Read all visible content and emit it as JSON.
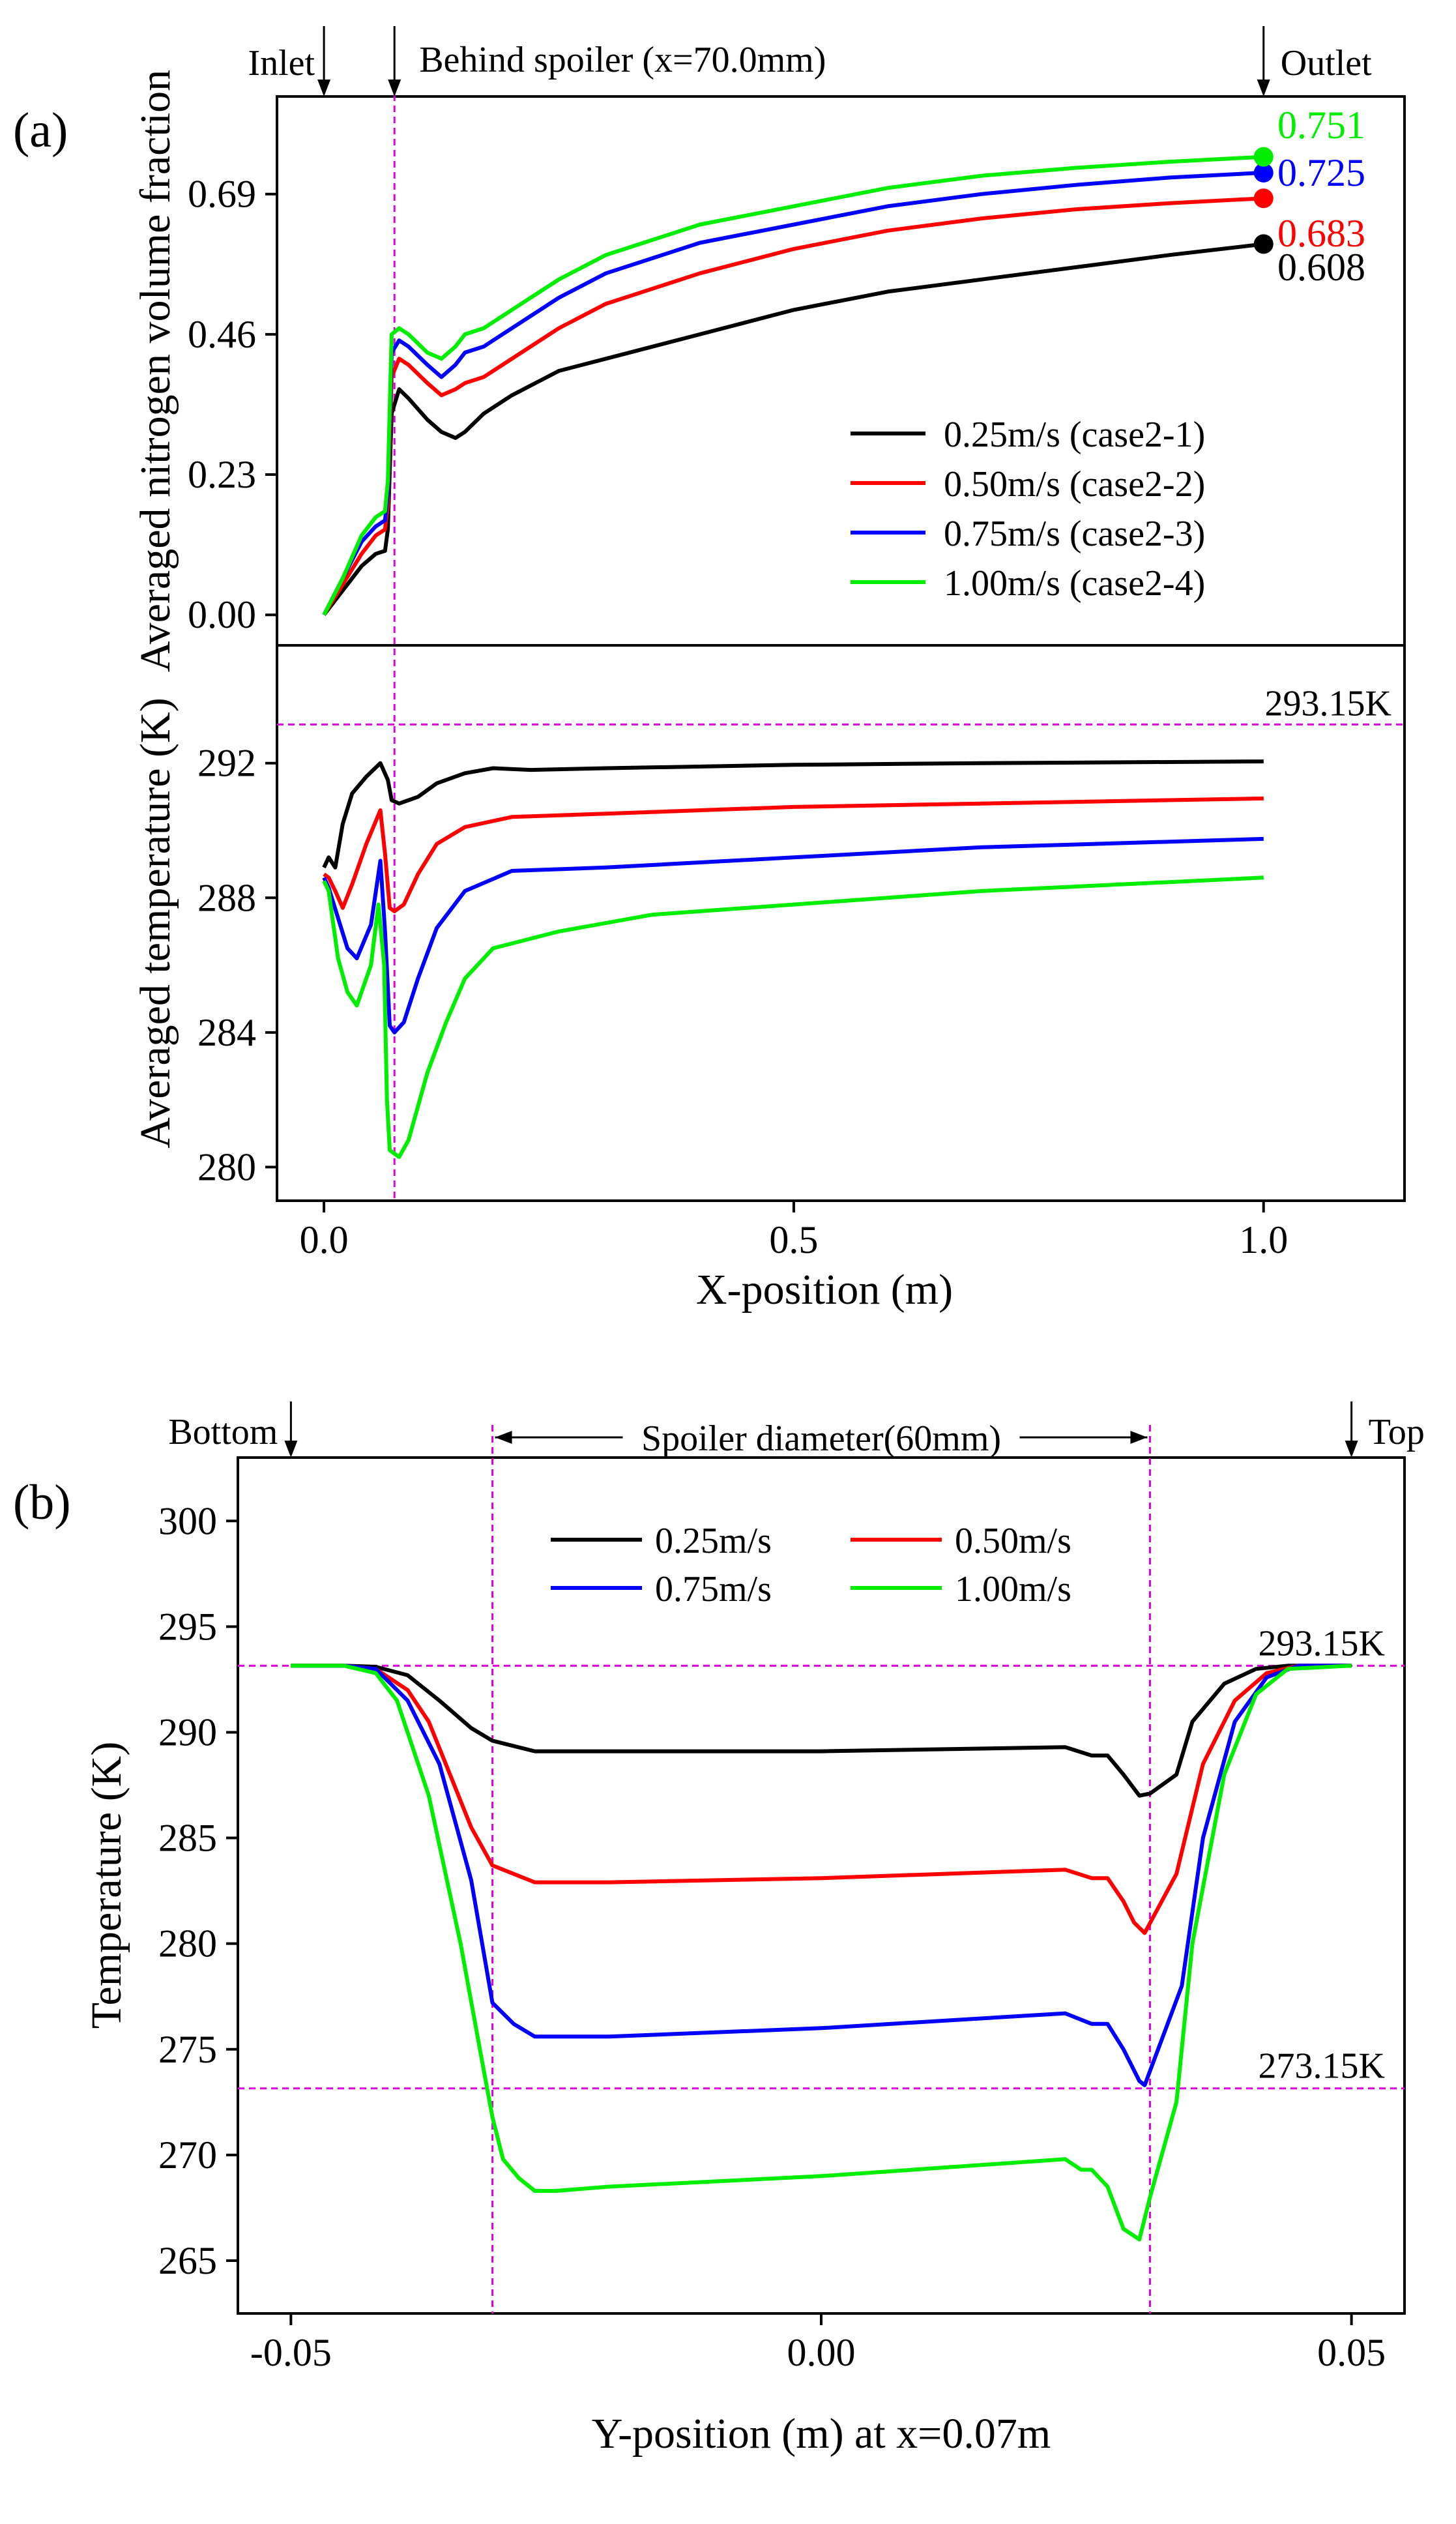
{
  "chart_data": [
    {
      "id": "a",
      "panel_label": "(a)",
      "type": "line",
      "xlabel": "X-position (m)",
      "xlim": [
        -0.05,
        1.15
      ],
      "xticks": [
        0.0,
        0.5,
        1.0
      ],
      "xtick_labels": [
        "0.0",
        "0.5",
        "1.0"
      ],
      "top_annotations": [
        {
          "text": "Inlet",
          "x": 0.0
        },
        {
          "text": "Behind spoiler (x=70.0mm)",
          "x": 0.075
        },
        {
          "text": "Outlet",
          "x": 1.0
        }
      ],
      "spoiler_x": 0.075,
      "legend": {
        "placement": "lower-right of upper subplot",
        "items": [
          "0.25m/s (case2-1)",
          "0.50m/s (case2-2)",
          "0.75m/s (case2-3)",
          "1.00m/s (case2-4)"
        ]
      },
      "colors": [
        "#000000",
        "#ff0000",
        "#0000ff",
        "#00ee00"
      ],
      "upper": {
        "ylabel": "Averaged nitrogen volume fraction",
        "ylim": [
          -0.05,
          0.85
        ],
        "yticks": [
          0.0,
          0.23,
          0.46,
          0.69
        ],
        "ytick_labels": [
          "0.00",
          "0.23",
          "0.46",
          "0.69"
        ],
        "end_labels": [
          "0.608",
          "0.683",
          "0.725",
          "0.751"
        ],
        "end_values": [
          0.608,
          0.683,
          0.725,
          0.751
        ],
        "series": [
          {
            "name": "0.25m/s (case2-1)",
            "x": [
              0,
              0.02,
              0.04,
              0.055,
              0.065,
              0.068,
              0.072,
              0.08,
              0.09,
              0.11,
              0.125,
              0.14,
              0.15,
              0.17,
              0.2,
              0.25,
              0.3,
              0.4,
              0.5,
              0.6,
              0.7,
              0.8,
              0.9,
              1.0
            ],
            "values": [
              0,
              0.04,
              0.08,
              0.1,
              0.105,
              0.14,
              0.33,
              0.37,
              0.355,
              0.32,
              0.3,
              0.29,
              0.3,
              0.33,
              0.36,
              0.4,
              0.42,
              0.46,
              0.5,
              0.53,
              0.55,
              0.57,
              0.59,
              0.608
            ]
          },
          {
            "name": "0.50m/s (case2-2)",
            "x": [
              0,
              0.02,
              0.04,
              0.055,
              0.065,
              0.068,
              0.072,
              0.08,
              0.09,
              0.11,
              0.125,
              0.14,
              0.15,
              0.17,
              0.2,
              0.25,
              0.3,
              0.4,
              0.5,
              0.6,
              0.7,
              0.8,
              0.9,
              1.0
            ],
            "values": [
              0,
              0.05,
              0.1,
              0.13,
              0.14,
              0.18,
              0.39,
              0.42,
              0.41,
              0.38,
              0.36,
              0.37,
              0.38,
              0.39,
              0.42,
              0.47,
              0.51,
              0.56,
              0.6,
              0.63,
              0.65,
              0.665,
              0.675,
              0.683
            ]
          },
          {
            "name": "0.75m/s (case2-3)",
            "x": [
              0,
              0.02,
              0.04,
              0.055,
              0.065,
              0.068,
              0.072,
              0.08,
              0.09,
              0.11,
              0.125,
              0.14,
              0.15,
              0.17,
              0.2,
              0.25,
              0.3,
              0.4,
              0.5,
              0.6,
              0.7,
              0.8,
              0.9,
              1.0
            ],
            "values": [
              0,
              0.06,
              0.12,
              0.145,
              0.155,
              0.2,
              0.43,
              0.45,
              0.44,
              0.41,
              0.39,
              0.41,
              0.43,
              0.44,
              0.47,
              0.52,
              0.56,
              0.61,
              0.64,
              0.67,
              0.69,
              0.705,
              0.717,
              0.725
            ]
          },
          {
            "name": "1.00m/s (case2-4)",
            "x": [
              0,
              0.02,
              0.04,
              0.055,
              0.065,
              0.068,
              0.072,
              0.08,
              0.09,
              0.11,
              0.125,
              0.14,
              0.15,
              0.17,
              0.2,
              0.25,
              0.3,
              0.4,
              0.5,
              0.6,
              0.7,
              0.8,
              0.9,
              1.0
            ],
            "values": [
              0,
              0.06,
              0.13,
              0.16,
              0.17,
              0.22,
              0.46,
              0.47,
              0.46,
              0.43,
              0.42,
              0.44,
              0.46,
              0.47,
              0.5,
              0.55,
              0.59,
              0.64,
              0.67,
              0.7,
              0.72,
              0.733,
              0.743,
              0.751
            ]
          }
        ]
      },
      "lower": {
        "ylabel": "Averaged temperature (K)",
        "ylim": [
          279,
          295.5
        ],
        "yticks": [
          280,
          284,
          288,
          292
        ],
        "ytick_labels": [
          "280",
          "284",
          "288",
          "292"
        ],
        "reference": {
          "value": 293.15,
          "label": "293.15K"
        },
        "series": [
          {
            "name": "0.25m/s (case2-1)",
            "x": [
              0,
              0.005,
              0.012,
              0.02,
              0.03,
              0.045,
              0.06,
              0.068,
              0.072,
              0.08,
              0.1,
              0.12,
              0.15,
              0.18,
              0.22,
              0.3,
              0.5,
              0.7,
              1.0
            ],
            "values": [
              288.9,
              289.2,
              288.9,
              290.2,
              291.1,
              291.6,
              292.0,
              291.5,
              290.9,
              290.8,
              291.0,
              291.4,
              291.7,
              291.85,
              291.8,
              291.85,
              291.95,
              292.0,
              292.05
            ]
          },
          {
            "name": "0.50m/s (case2-2)",
            "x": [
              0,
              0.005,
              0.012,
              0.02,
              0.03,
              0.045,
              0.06,
              0.065,
              0.07,
              0.075,
              0.085,
              0.1,
              0.12,
              0.15,
              0.2,
              0.3,
              0.5,
              0.7,
              1.0
            ],
            "values": [
              288.7,
              288.6,
              288.2,
              287.7,
              288.4,
              289.6,
              290.6,
              289.3,
              287.7,
              287.6,
              287.8,
              288.7,
              289.6,
              290.1,
              290.4,
              290.5,
              290.7,
              290.8,
              290.95
            ]
          },
          {
            "name": "0.75m/s (case2-3)",
            "x": [
              0,
              0.005,
              0.015,
              0.025,
              0.035,
              0.05,
              0.06,
              0.065,
              0.07,
              0.075,
              0.085,
              0.1,
              0.12,
              0.15,
              0.2,
              0.3,
              0.5,
              0.7,
              1.0
            ],
            "values": [
              288.6,
              288.3,
              287.4,
              286.5,
              286.2,
              287.2,
              289.1,
              287.0,
              284.2,
              284.0,
              284.3,
              285.6,
              287.1,
              288.2,
              288.8,
              288.9,
              289.2,
              289.5,
              289.75
            ]
          },
          {
            "name": "1.00m/s (case2-4)",
            "x": [
              0,
              0.005,
              0.015,
              0.025,
              0.035,
              0.05,
              0.058,
              0.064,
              0.067,
              0.07,
              0.08,
              0.09,
              0.11,
              0.13,
              0.15,
              0.18,
              0.25,
              0.35,
              0.5,
              0.7,
              1.0
            ],
            "values": [
              288.5,
              288.2,
              286.2,
              285.2,
              284.8,
              286.0,
              287.8,
              286.0,
              282.0,
              280.5,
              280.3,
              280.8,
              282.8,
              284.3,
              285.6,
              286.5,
              287.0,
              287.5,
              287.8,
              288.2,
              288.6
            ]
          }
        ]
      }
    },
    {
      "id": "b",
      "panel_label": "(b)",
      "type": "line",
      "xlabel": "Y-position (m) at x=0.07m",
      "ylabel": "Temperature (K)",
      "xlim": [
        -0.055,
        0.055
      ],
      "ylim": [
        262.5,
        303
      ],
      "xticks": [
        -0.05,
        0.0,
        0.05
      ],
      "xtick_labels": [
        "-0.05",
        "0.00",
        "0.05"
      ],
      "yticks": [
        265,
        270,
        275,
        280,
        285,
        290,
        295,
        300
      ],
      "ytick_labels": [
        "265",
        "270",
        "275",
        "280",
        "285",
        "290",
        "295",
        "300"
      ],
      "top_annotations": [
        {
          "text": "Bottom",
          "x": -0.05
        },
        {
          "text": "Spoiler diameter(60mm)",
          "x": 0.0
        },
        {
          "text": "Top",
          "x": 0.05
        }
      ],
      "spoiler_edges": [
        -0.031,
        0.031
      ],
      "references": [
        {
          "value": 293.15,
          "label": "293.15K"
        },
        {
          "value": 273.15,
          "label": "273.15K"
        }
      ],
      "legend": {
        "placement": "top, two columns",
        "items": [
          "0.25m/s",
          "0.50m/s",
          "0.75m/s",
          "1.00m/s"
        ]
      },
      "colors": [
        "#000000",
        "#ff0000",
        "#0000ff",
        "#00ee00"
      ],
      "series": [
        {
          "name": "0.25m/s",
          "x": [
            -0.05,
            -0.045,
            -0.042,
            -0.039,
            -0.036,
            -0.033,
            -0.031,
            -0.027,
            -0.02,
            0.0,
            0.023,
            0.0255,
            0.027,
            0.0285,
            0.03,
            0.031,
            0.0335,
            0.035,
            0.038,
            0.041,
            0.044,
            0.05
          ],
          "values": [
            293.15,
            293.15,
            293.1,
            292.7,
            291.5,
            290.2,
            289.6,
            289.1,
            289.1,
            289.1,
            289.3,
            288.9,
            288.9,
            288.0,
            287.0,
            287.1,
            288.0,
            290.5,
            292.3,
            293.0,
            293.15,
            293.15
          ]
        },
        {
          "name": "0.50m/s",
          "x": [
            -0.05,
            -0.045,
            -0.042,
            -0.039,
            -0.037,
            -0.035,
            -0.033,
            -0.031,
            -0.027,
            -0.02,
            0.0,
            0.023,
            0.0255,
            0.027,
            0.0285,
            0.0295,
            0.0305,
            0.0335,
            0.036,
            0.039,
            0.042,
            0.045,
            0.05
          ],
          "values": [
            293.15,
            293.15,
            293.0,
            292.0,
            290.5,
            288.0,
            285.5,
            283.7,
            282.9,
            282.9,
            283.1,
            283.5,
            283.1,
            283.1,
            282.0,
            281.0,
            280.5,
            283.3,
            288.5,
            291.5,
            292.8,
            293.15,
            293.15
          ]
        },
        {
          "name": "0.75m/s",
          "x": [
            -0.05,
            -0.045,
            -0.042,
            -0.039,
            -0.036,
            -0.033,
            -0.031,
            -0.029,
            -0.027,
            -0.02,
            0.0,
            0.023,
            0.0255,
            0.027,
            0.0285,
            0.03,
            0.0305,
            0.034,
            0.036,
            0.039,
            0.042,
            0.045,
            0.05
          ],
          "values": [
            293.15,
            293.15,
            293.0,
            291.5,
            288.5,
            283.0,
            277.2,
            276.2,
            275.6,
            275.6,
            276.0,
            276.7,
            276.2,
            276.2,
            275.0,
            273.5,
            273.3,
            278.0,
            285.0,
            290.5,
            292.6,
            293.15,
            293.15
          ]
        },
        {
          "name": "1.00m/s",
          "x": [
            -0.05,
            -0.045,
            -0.042,
            -0.04,
            -0.037,
            -0.034,
            -0.032,
            -0.031,
            -0.03,
            -0.0285,
            -0.027,
            -0.025,
            -0.02,
            0.0,
            0.023,
            0.0245,
            0.0255,
            0.027,
            0.0285,
            0.03,
            0.031,
            0.0335,
            0.035,
            0.038,
            0.041,
            0.044,
            0.05
          ],
          "values": [
            293.15,
            293.15,
            292.8,
            291.5,
            287.0,
            280.0,
            274.5,
            271.8,
            269.8,
            268.9,
            268.3,
            268.3,
            268.5,
            269.0,
            269.8,
            269.3,
            269.3,
            268.5,
            266.5,
            266.0,
            268.0,
            272.5,
            280.0,
            288.0,
            291.8,
            293.0,
            293.15
          ]
        }
      ]
    }
  ]
}
